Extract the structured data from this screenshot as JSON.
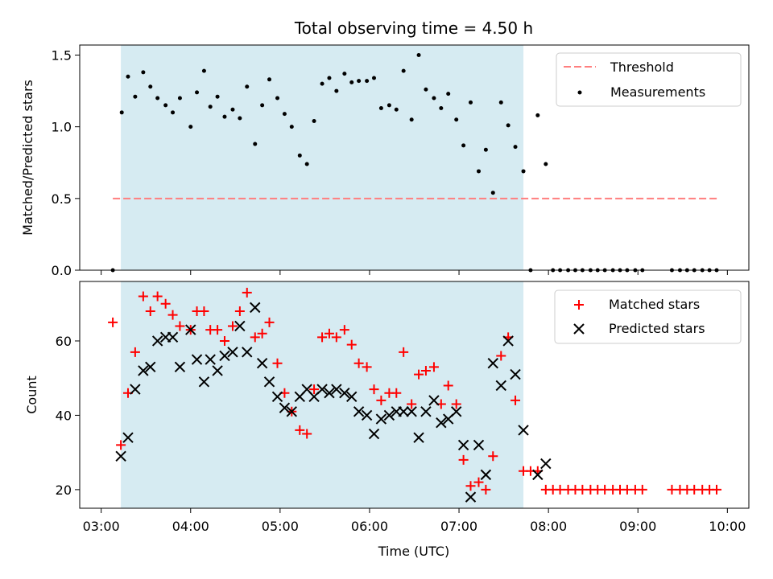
{
  "chart_data": {
    "title": "Total observing time = 4.50 h",
    "xlabel": "Time (UTC)",
    "x_ticks": [
      "03:00",
      "04:00",
      "05:00",
      "06:00",
      "07:00",
      "08:00",
      "09:00",
      "10:00"
    ],
    "x_tick_hours": [
      3,
      4,
      5,
      6,
      7,
      8,
      9,
      10
    ],
    "xlim": [
      2.76,
      10.24
    ],
    "observing_window": [
      3.22,
      7.72
    ],
    "window_color": "#add8e6",
    "panels": [
      {
        "type": "scatter",
        "ylabel": "Matched/Predicted stars",
        "ylim": [
          0,
          1.57
        ],
        "y_ticks": [
          0.0,
          0.5,
          1.0,
          1.5
        ],
        "y_tick_labels": [
          "0.0",
          "0.5",
          "1.0",
          "1.5"
        ],
        "legend_position": "top-right",
        "threshold": {
          "name": "Threshold",
          "value": 0.5,
          "x_range": [
            3.13,
            9.9
          ],
          "color": "#ff7f7f"
        },
        "series": [
          {
            "name": "Measurements",
            "marker": "dot",
            "color": "#000000",
            "x": [
              3.13,
              3.23,
              3.3,
              3.38,
              3.47,
              3.55,
              3.63,
              3.72,
              3.8,
              3.88,
              4.0,
              4.07,
              4.15,
              4.22,
              4.3,
              4.38,
              4.47,
              4.55,
              4.63,
              4.72,
              4.8,
              4.88,
              4.97,
              5.05,
              5.13,
              5.22,
              5.3,
              5.38,
              5.47,
              5.55,
              5.63,
              5.72,
              5.8,
              5.88,
              5.97,
              6.05,
              6.13,
              6.22,
              6.3,
              6.38,
              6.47,
              6.55,
              6.63,
              6.72,
              6.8,
              6.88,
              6.97,
              7.05,
              7.13,
              7.22,
              7.3,
              7.38,
              7.47,
              7.55,
              7.63,
              7.72,
              7.8,
              7.88,
              7.97,
              8.05,
              8.13,
              8.22,
              8.3,
              8.38,
              8.47,
              8.55,
              8.63,
              8.72,
              8.8,
              8.88,
              8.97,
              9.05,
              9.38,
              9.47,
              9.55,
              9.63,
              9.72,
              9.8,
              9.88
            ],
            "y": [
              0,
              1.1,
              1.35,
              1.21,
              1.38,
              1.28,
              1.2,
              1.15,
              1.1,
              1.2,
              1.0,
              1.24,
              1.39,
              1.14,
              1.21,
              1.07,
              1.12,
              1.06,
              1.28,
              0.88,
              1.15,
              1.33,
              1.2,
              1.09,
              1.0,
              0.8,
              0.74,
              1.04,
              1.3,
              1.34,
              1.25,
              1.37,
              1.31,
              1.32,
              1.32,
              1.34,
              1.13,
              1.15,
              1.12,
              1.39,
              1.05,
              1.5,
              1.26,
              1.2,
              1.13,
              1.23,
              1.05,
              0.87,
              1.17,
              0.69,
              0.84,
              0.54,
              1.17,
              1.01,
              0.86,
              0.69,
              0,
              1.08,
              0.74,
              0,
              0,
              0,
              0,
              0,
              0,
              0,
              0,
              0,
              0,
              0,
              0,
              0,
              0,
              0,
              0,
              0,
              0,
              0,
              0
            ]
          }
        ]
      },
      {
        "type": "scatter",
        "ylabel": "Count",
        "ylim": [
          15,
          76
        ],
        "y_ticks": [
          20,
          40,
          60
        ],
        "y_tick_labels": [
          "20",
          "40",
          "60"
        ],
        "legend_position": "top-right",
        "series": [
          {
            "name": "Matched stars",
            "marker": "plus",
            "color": "#ff0000",
            "x": [
              3.13,
              3.22,
              3.3,
              3.38,
              3.47,
              3.55,
              3.63,
              3.72,
              3.8,
              3.88,
              4.0,
              4.07,
              4.15,
              4.22,
              4.3,
              4.38,
              4.47,
              4.55,
              4.63,
              4.72,
              4.8,
              4.88,
              4.97,
              5.05,
              5.13,
              5.22,
              5.3,
              5.38,
              5.47,
              5.55,
              5.63,
              5.72,
              5.8,
              5.88,
              5.97,
              6.05,
              6.13,
              6.22,
              6.3,
              6.38,
              6.47,
              6.55,
              6.63,
              6.72,
              6.8,
              6.88,
              6.97,
              7.05,
              7.13,
              7.22,
              7.3,
              7.38,
              7.47,
              7.55,
              7.63,
              7.72,
              7.8,
              7.88,
              7.97,
              8.05,
              8.13,
              8.22,
              8.3,
              8.38,
              8.47,
              8.55,
              8.63,
              8.72,
              8.8,
              8.88,
              8.97,
              9.05,
              9.38,
              9.47,
              9.55,
              9.63,
              9.72,
              9.8,
              9.88
            ],
            "y": [
              65,
              32,
              46,
              57,
              72,
              68,
              72,
              70,
              67,
              64,
              63,
              68,
              68,
              63,
              63,
              60,
              64,
              68,
              73,
              61,
              62,
              65,
              54,
              46,
              41,
              36,
              35,
              47,
              61,
              62,
              61,
              63,
              59,
              54,
              53,
              47,
              44,
              46,
              46,
              57,
              43,
              51,
              52,
              53,
              43,
              48,
              43,
              28,
              21,
              22,
              20,
              29,
              56,
              61,
              44,
              25,
              25,
              25,
              20,
              20,
              20,
              20,
              20,
              20,
              20,
              20,
              20,
              20,
              20,
              20,
              20,
              20,
              20,
              20,
              20,
              20,
              20,
              20,
              20
            ]
          },
          {
            "name": "Predicted stars",
            "marker": "x",
            "color": "#000000",
            "x": [
              3.22,
              3.3,
              3.38,
              3.47,
              3.55,
              3.63,
              3.72,
              3.8,
              3.88,
              4.0,
              4.07,
              4.15,
              4.22,
              4.3,
              4.38,
              4.47,
              4.55,
              4.63,
              4.72,
              4.8,
              4.88,
              4.97,
              5.05,
              5.13,
              5.22,
              5.3,
              5.38,
              5.47,
              5.55,
              5.63,
              5.72,
              5.8,
              5.88,
              5.97,
              6.05,
              6.13,
              6.22,
              6.3,
              6.38,
              6.47,
              6.55,
              6.63,
              6.72,
              6.8,
              6.88,
              6.97,
              7.05,
              7.13,
              7.22,
              7.3,
              7.38,
              7.47,
              7.55,
              7.63,
              7.72,
              7.88,
              7.97
            ],
            "y": [
              29,
              34,
              47,
              52,
              53,
              60,
              61,
              61,
              53,
              63,
              55,
              49,
              55,
              52,
              56,
              57,
              64,
              57,
              69,
              54,
              49,
              45,
              42,
              41,
              45,
              47,
              45,
              47,
              46,
              47,
              46,
              45,
              41,
              40,
              35,
              39,
              40,
              41,
              41,
              41,
              34,
              41,
              44,
              38,
              39,
              41,
              32,
              18,
              32,
              24,
              54,
              48,
              60,
              51,
              36,
              24,
              27
            ]
          }
        ]
      }
    ]
  }
}
